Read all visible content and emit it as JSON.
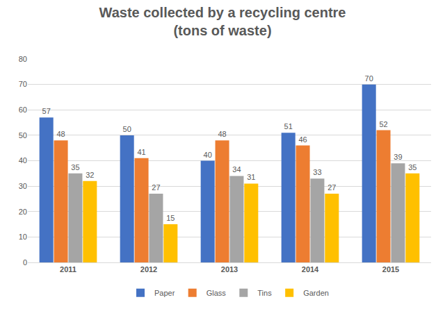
{
  "chart_data": {
    "type": "bar",
    "title": "Waste collected by a recycling centre",
    "subtitle": "(tons of waste)",
    "categories": [
      "2011",
      "2012",
      "2013",
      "2014",
      "2015"
    ],
    "series": [
      {
        "name": "Paper",
        "color": "#4472c4",
        "values": [
          57,
          50,
          40,
          51,
          70
        ]
      },
      {
        "name": "Glass",
        "color": "#ed7d31",
        "values": [
          48,
          41,
          48,
          46,
          52
        ]
      },
      {
        "name": "Tins",
        "color": "#a5a5a5",
        "values": [
          35,
          27,
          34,
          33,
          39
        ]
      },
      {
        "name": "Garden",
        "color": "#ffc000",
        "values": [
          32,
          15,
          31,
          27,
          35
        ]
      }
    ],
    "ylim": [
      0,
      80
    ],
    "yticks": [
      0,
      10,
      20,
      30,
      40,
      50,
      60,
      70,
      80
    ],
    "grid": true,
    "data_labels": true,
    "legend": "bottom"
  }
}
